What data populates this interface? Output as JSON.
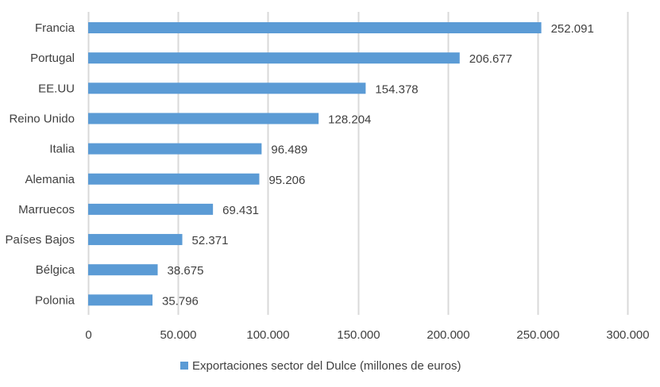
{
  "chart_data": {
    "type": "bar",
    "orientation": "horizontal",
    "title": "",
    "xlabel": "",
    "ylabel": "",
    "categories": [
      "Francia",
      "Portugal",
      "EE.UU",
      "Reino Unido",
      "Italia",
      "Alemania",
      "Marruecos",
      "Países Bajos",
      "Bélgica",
      "Polonia"
    ],
    "values": [
      252091,
      206677,
      154378,
      128204,
      96489,
      95206,
      69431,
      52371,
      38675,
      35796
    ],
    "value_labels": [
      "252.091",
      "206.677",
      "154.378",
      "128.204",
      "96.489",
      "95.206",
      "69.431",
      "52.371",
      "38.675",
      "35.796"
    ],
    "xlim": [
      0,
      300000
    ],
    "x_ticks": [
      0,
      50000,
      100000,
      150000,
      200000,
      250000,
      300000
    ],
    "x_tick_labels": [
      "0",
      "50.000",
      "100.000",
      "150.000",
      "200.000",
      "250.000",
      "300.000"
    ],
    "grid": true,
    "legend": {
      "position": "bottom",
      "entries": [
        "Exportaciones sector del Dulce (millones de euros)"
      ]
    },
    "series": [
      {
        "name": "Exportaciones sector del Dulce (millones de euros)",
        "color": "#5B9BD5"
      }
    ],
    "colors": {
      "bar": "#5B9BD5",
      "grid": "#D9D9D9",
      "text": "#404040"
    }
  }
}
